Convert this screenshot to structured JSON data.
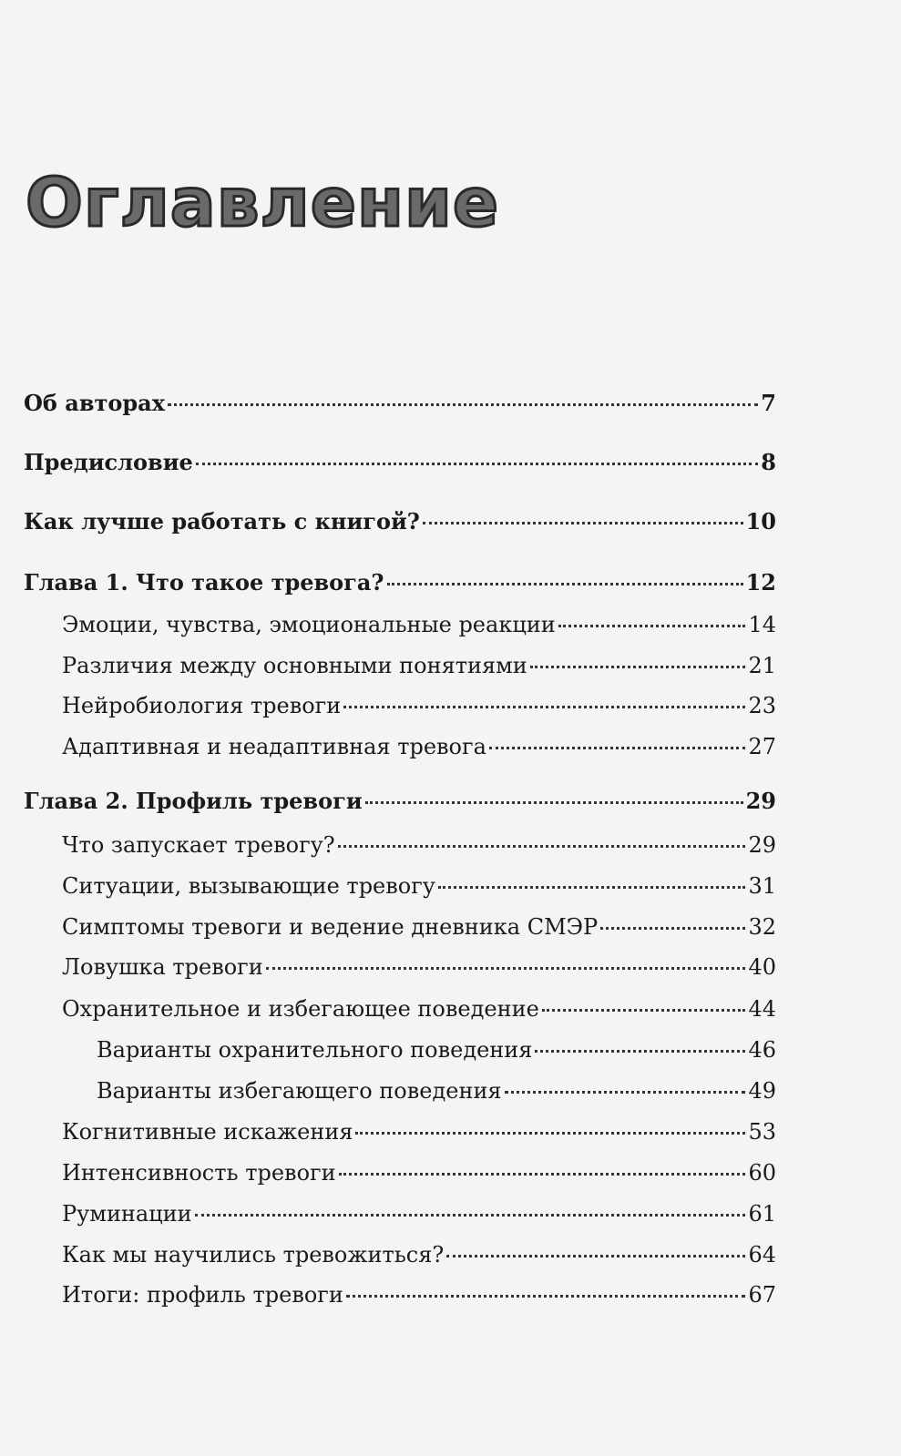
{
  "page_title": "Оглавление",
  "entries": [
    {
      "label": "Об авторах",
      "page": "7",
      "level": 0
    },
    {
      "label": "Предисловие",
      "page": "8",
      "level": 0
    },
    {
      "label": "Как лучше работать с книгой?",
      "page": "10",
      "level": 0
    },
    {
      "label": "Глава 1. Что такое тревога?",
      "page": "12",
      "level": 0
    },
    {
      "label": "Эмоции, чувства, эмоциональные реакции",
      "page": "14",
      "level": 1
    },
    {
      "label": "Различия между основными понятиями",
      "page": "21",
      "level": 1
    },
    {
      "label": "Нейробиология тревоги",
      "page": "23",
      "level": 1
    },
    {
      "label": "Адаптивная и неадаптивная тревога",
      "page": "27",
      "level": 1
    },
    {
      "label": "Глава 2. Профиль тревоги",
      "page": "29",
      "level": 0
    },
    {
      "label": "Что запускает тревогу?",
      "page": "29",
      "level": 1
    },
    {
      "label": "Ситуации, вызывающие тревогу",
      "page": "31",
      "level": 1
    },
    {
      "label": "Симптомы тревоги и ведение дневника СМЭР",
      "page": "32",
      "level": 1
    },
    {
      "label": "Ловушка тревоги",
      "page": "40",
      "level": 1
    },
    {
      "label": "Охранительное и избегающее поведение",
      "page": "44",
      "level": 1
    },
    {
      "label": "Варианты охранительного поведения",
      "page": "46",
      "level": 2
    },
    {
      "label": "Варианты избегающего поведения",
      "page": "49",
      "level": 2
    },
    {
      "label": "Когнитивные искажения",
      "page": "53",
      "level": 1
    },
    {
      "label": "Интенсивность тревоги",
      "page": "60",
      "level": 1
    },
    {
      "label": "Руминации",
      "page": "61",
      "level": 1
    },
    {
      "label": "Как мы научились тревожиться?",
      "page": "64",
      "level": 1
    },
    {
      "label": "Итоги: профиль тревоги",
      "page": "67",
      "level": 1
    }
  ]
}
